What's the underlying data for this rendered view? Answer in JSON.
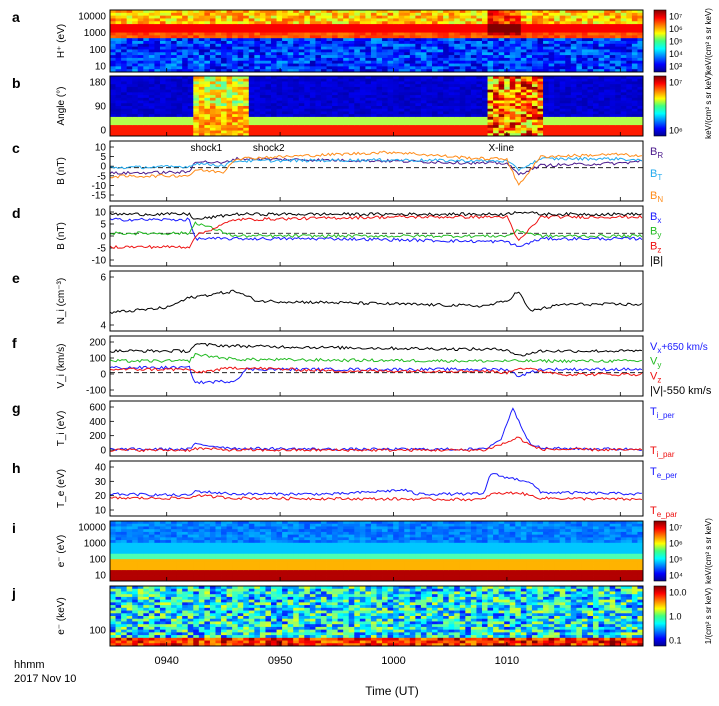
{
  "figure": {
    "x_axis_title": "Time (UT)",
    "x_ticks": [
      "0940",
      "0950",
      "1000",
      "1010"
    ],
    "corner_labels": [
      "hhmm",
      "2017 Nov 10"
    ]
  },
  "colors": {
    "black": "#000000",
    "blue": "#1a1aff",
    "green": "#22bb22",
    "red": "#ee1111",
    "cyan": "#22aaee",
    "orange": "#ff8c1a",
    "purple": "#4b1a8c"
  },
  "chart_data": [
    {
      "id": "a",
      "type": "heatmap",
      "panel_label": "a",
      "ylabel": "H⁺ (eV)",
      "ytick_labels": [
        "10000",
        "1000",
        "100",
        "10"
      ],
      "yscale": "log",
      "ylim": [
        10,
        30000
      ],
      "colorbar_label": "keV/(cm² s sr keV)",
      "colorbar_ticks": [
        "10⁷",
        "10⁶",
        "10⁵",
        "10⁴",
        "10³"
      ]
    },
    {
      "id": "b",
      "type": "heatmap",
      "panel_label": "b",
      "ylabel": "Angle (°)",
      "ytick_labels": [
        "180",
        "90",
        "0"
      ],
      "ylim": [
        0,
        180
      ],
      "colorbar_label": "keV/(cm² s sr keV)",
      "colorbar_ticks": [
        "10⁷",
        "10⁶"
      ]
    },
    {
      "id": "c",
      "type": "line",
      "panel_label": "c",
      "ylabel": "B (nT)",
      "ytick_labels": [
        "10",
        "5",
        "0",
        "-5",
        "-10",
        "-15"
      ],
      "ylim": [
        -15,
        12
      ],
      "annotations": [
        "shock1",
        "shock2",
        "X-line"
      ],
      "series": [
        {
          "name": "B_R",
          "color": "#4b1a8c",
          "segments": [
            [
              0,
              -2.5
            ],
            [
              14,
              -2
            ],
            [
              15,
              3
            ],
            [
              20,
              2
            ],
            [
              22,
              4
            ],
            [
              50,
              3
            ],
            [
              66,
              2
            ],
            [
              70,
              2
            ],
            [
              72,
              -3
            ],
            [
              76,
              1
            ],
            [
              90,
              2
            ],
            [
              94,
              3
            ]
          ]
        },
        {
          "name": "B_T",
          "color": "#22aaee",
          "segments": [
            [
              0,
              0
            ],
            [
              14,
              0.5
            ],
            [
              15,
              2
            ],
            [
              20,
              1
            ],
            [
              22,
              3
            ],
            [
              50,
              3.5
            ],
            [
              66,
              3
            ],
            [
              70,
              3
            ],
            [
              72,
              -1
            ],
            [
              76,
              4
            ],
            [
              90,
              4
            ],
            [
              94,
              3
            ]
          ]
        },
        {
          "name": "B_N",
          "color": "#ff8c1a",
          "segments": [
            [
              0,
              -4
            ],
            [
              14,
              -3.5
            ],
            [
              15,
              -1
            ],
            [
              20,
              -2
            ],
            [
              22,
              4
            ],
            [
              40,
              6
            ],
            [
              50,
              7
            ],
            [
              60,
              5
            ],
            [
              66,
              4
            ],
            [
              70,
              4
            ],
            [
              72,
              -8
            ],
            [
              76,
              5
            ],
            [
              90,
              6
            ],
            [
              94,
              5
            ]
          ]
        }
      ],
      "legend": [
        {
          "main": "B",
          "sub": "R",
          "color": "#4b1a8c"
        },
        {
          "main": "B",
          "sub": "T",
          "color": "#22aaee"
        },
        {
          "main": "B",
          "sub": "N",
          "color": "#ff8c1a"
        }
      ]
    },
    {
      "id": "d",
      "type": "line",
      "panel_label": "d",
      "ylabel": "B (nT)",
      "ytick_labels": [
        "10",
        "5",
        "0",
        "-5",
        "-10"
      ],
      "ylim": [
        -12,
        10
      ],
      "series": [
        {
          "name": "Bx",
          "color": "#1a1aff",
          "segments": [
            [
              0,
              5
            ],
            [
              14,
              5
            ],
            [
              15,
              -2
            ],
            [
              22,
              -2
            ],
            [
              40,
              -2
            ],
            [
              66,
              -3
            ],
            [
              70,
              -3
            ],
            [
              72,
              -5
            ],
            [
              76,
              -2
            ],
            [
              94,
              -2
            ]
          ]
        },
        {
          "name": "By",
          "color": "#22bb22",
          "segments": [
            [
              0,
              0
            ],
            [
              14,
              0
            ],
            [
              15,
              4
            ],
            [
              22,
              -1
            ],
            [
              50,
              -1
            ],
            [
              66,
              -1
            ],
            [
              70,
              -1
            ],
            [
              72,
              1
            ],
            [
              76,
              -1
            ],
            [
              94,
              -1
            ]
          ]
        },
        {
          "name": "Bz",
          "color": "#ee1111",
          "segments": [
            [
              0,
              -5
            ],
            [
              14,
              -5
            ],
            [
              15,
              -1
            ],
            [
              22,
              5
            ],
            [
              50,
              6
            ],
            [
              66,
              6
            ],
            [
              70,
              6
            ],
            [
              72,
              -3
            ],
            [
              76,
              6
            ],
            [
              94,
              6
            ]
          ]
        },
        {
          "name": "|B|",
          "color": "#000000",
          "segments": [
            [
              0,
              7
            ],
            [
              14,
              7
            ],
            [
              15,
              5
            ],
            [
              22,
              7
            ],
            [
              66,
              7
            ],
            [
              70,
              7
            ],
            [
              72,
              8
            ],
            [
              76,
              7
            ],
            [
              94,
              7
            ]
          ]
        }
      ],
      "legend": [
        {
          "main": "B",
          "sub": "x",
          "color": "#1a1aff"
        },
        {
          "main": "B",
          "sub": "y",
          "color": "#22bb22"
        },
        {
          "main": "B",
          "sub": "z",
          "color": "#ee1111"
        },
        {
          "main": "|B|",
          "sub": "",
          "color": "#000000"
        }
      ]
    },
    {
      "id": "e",
      "type": "line",
      "panel_label": "e",
      "ylabel": "N_i (cm⁻³)",
      "ytick_labels": [
        "6",
        "4"
      ],
      "ylim": [
        3.2,
        6.8
      ],
      "series": [
        {
          "name": "Ni",
          "color": "#000000",
          "segments": [
            [
              0,
              4.3
            ],
            [
              10,
              4.6
            ],
            [
              14,
              5.2
            ],
            [
              22,
              5.6
            ],
            [
              26,
              5.0
            ],
            [
              40,
              4.9
            ],
            [
              66,
              4.7
            ],
            [
              70,
              5.0
            ],
            [
              72,
              5.6
            ],
            [
              74,
              4.4
            ],
            [
              80,
              4.8
            ],
            [
              94,
              4.8
            ]
          ]
        }
      ],
      "legend": []
    },
    {
      "id": "f",
      "type": "line",
      "panel_label": "f",
      "ylabel": "V_i (km/s)",
      "ytick_labels": [
        "200",
        "100",
        "0",
        "-100"
      ],
      "ylim": [
        -140,
        220
      ],
      "series": [
        {
          "name": "Vx+650",
          "color": "#1a1aff",
          "segments": [
            [
              0,
              30
            ],
            [
              14,
              30
            ],
            [
              15,
              -60
            ],
            [
              22,
              -50
            ],
            [
              24,
              20
            ],
            [
              66,
              20
            ],
            [
              70,
              20
            ],
            [
              72,
              -20
            ],
            [
              76,
              20
            ],
            [
              94,
              20
            ]
          ]
        },
        {
          "name": "Vy",
          "color": "#22bb22",
          "segments": [
            [
              0,
              70
            ],
            [
              14,
              70
            ],
            [
              15,
              110
            ],
            [
              22,
              80
            ],
            [
              40,
              75
            ],
            [
              66,
              70
            ],
            [
              94,
              70
            ]
          ]
        },
        {
          "name": "Vz",
          "color": "#ee1111",
          "segments": [
            [
              0,
              20
            ],
            [
              14,
              20
            ],
            [
              15,
              0
            ],
            [
              22,
              30
            ],
            [
              40,
              10
            ],
            [
              66,
              10
            ],
            [
              70,
              0
            ],
            [
              72,
              30
            ],
            [
              80,
              -10
            ],
            [
              94,
              -10
            ]
          ]
        },
        {
          "name": "|V|-550",
          "color": "#000000",
          "segments": [
            [
              0,
              130
            ],
            [
              14,
              130
            ],
            [
              15,
              170
            ],
            [
              22,
              160
            ],
            [
              40,
              150
            ],
            [
              66,
              140
            ],
            [
              70,
              140
            ],
            [
              72,
              100
            ],
            [
              76,
              130
            ],
            [
              94,
              130
            ]
          ]
        }
      ],
      "legend": [
        {
          "main": "V",
          "sub": "x",
          "tail": "+650 km/s",
          "color": "#1a1aff"
        },
        {
          "main": "V",
          "sub": "y",
          "color": "#22bb22"
        },
        {
          "main": "V",
          "sub": "z",
          "color": "#ee1111"
        },
        {
          "main": "|V|-550 km/s",
          "sub": "",
          "color": "#000000"
        }
      ]
    },
    {
      "id": "g",
      "type": "line",
      "panel_label": "g",
      "ylabel": "T_i (eV)",
      "ytick_labels": [
        "600",
        "400",
        "200",
        "0"
      ],
      "ylim": [
        0,
        650
      ],
      "series": [
        {
          "name": "Ti_per",
          "color": "#1a1aff",
          "segments": [
            [
              0,
              80
            ],
            [
              14,
              80
            ],
            [
              15,
              140
            ],
            [
              22,
              90
            ],
            [
              40,
              80
            ],
            [
              66,
              80
            ],
            [
              69,
              200
            ],
            [
              70,
              380
            ],
            [
              71,
              580
            ],
            [
              72,
              420
            ],
            [
              74,
              160
            ],
            [
              76,
              90
            ],
            [
              94,
              80
            ]
          ]
        },
        {
          "name": "Ti_par",
          "color": "#ee1111",
          "segments": [
            [
              0,
              70
            ],
            [
              14,
              70
            ],
            [
              15,
              90
            ],
            [
              22,
              70
            ],
            [
              66,
              70
            ],
            [
              70,
              160
            ],
            [
              72,
              220
            ],
            [
              74,
              130
            ],
            [
              76,
              80
            ],
            [
              94,
              70
            ]
          ]
        }
      ],
      "legend": [
        {
          "main": "T",
          "sub": "i_per",
          "color": "#1a1aff"
        },
        {
          "main": "T",
          "sub": "i_par",
          "color": "#ee1111"
        }
      ]
    },
    {
      "id": "h",
      "type": "line",
      "panel_label": "h",
      "ylabel": "T_e (eV)",
      "ytick_labels": [
        "40",
        "30",
        "20",
        "10"
      ],
      "ylim": [
        5,
        45
      ],
      "series": [
        {
          "name": "Te_per",
          "color": "#1a1aff",
          "segments": [
            [
              0,
              21
            ],
            [
              14,
              20
            ],
            [
              15,
              23
            ],
            [
              22,
              21
            ],
            [
              40,
              21
            ],
            [
              52,
              24
            ],
            [
              54,
              21
            ],
            [
              66,
              21
            ],
            [
              67,
              36
            ],
            [
              70,
              33
            ],
            [
              74,
              30
            ],
            [
              76,
              22
            ],
            [
              80,
              22
            ],
            [
              94,
              21
            ]
          ]
        },
        {
          "name": "Te_par",
          "color": "#ee1111",
          "segments": [
            [
              0,
              18
            ],
            [
              14,
              18
            ],
            [
              15,
              20
            ],
            [
              22,
              18
            ],
            [
              66,
              17
            ],
            [
              67,
              21
            ],
            [
              72,
              22
            ],
            [
              76,
              18
            ],
            [
              94,
              17
            ]
          ]
        }
      ],
      "legend": [
        {
          "main": "T",
          "sub": "e_per",
          "color": "#1a1aff"
        },
        {
          "main": "T",
          "sub": "e_par",
          "color": "#ee1111"
        }
      ]
    },
    {
      "id": "i",
      "type": "heatmap",
      "panel_label": "i",
      "ylabel": "e⁻ (eV)",
      "ytick_labels": [
        "10000",
        "1000",
        "100",
        "10"
      ],
      "yscale": "log",
      "ylim": [
        5,
        30000
      ],
      "colorbar_label": "keV/(cm² s sr keV)",
      "colorbar_ticks": [
        "10⁷",
        "10⁶",
        "10⁵",
        "10⁴"
      ]
    },
    {
      "id": "j",
      "type": "heatmap",
      "panel_label": "j",
      "ylabel": "e⁻ (keV)",
      "ytick_labels": [
        "100"
      ],
      "colorbar_label": "1/(cm² s sr keV)",
      "colorbar_ticks": [
        "10.0",
        "1.0",
        "0.1"
      ]
    }
  ]
}
